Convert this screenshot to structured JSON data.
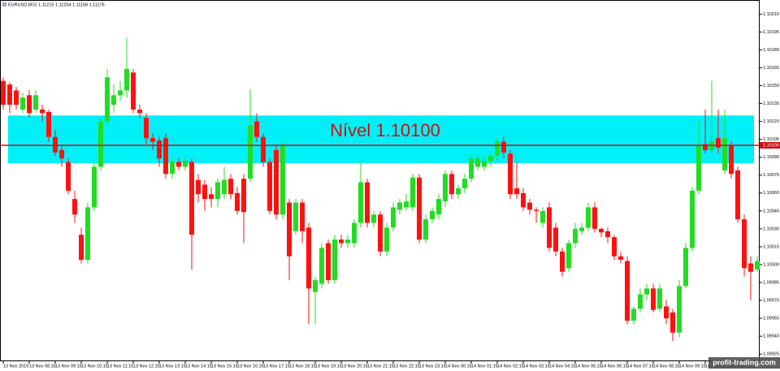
{
  "chart_data": {
    "type": "candlestick",
    "title": "EURUSD,M15  1.11215 1.11254 1.11158 1.11176",
    "watermark": "profit-trading.com",
    "categories": [
      "13 Nov 2019",
      null,
      null,
      null,
      "13 Nov 08:15",
      null,
      null,
      null,
      "13 Nov 09:15",
      null,
      null,
      null,
      "13 Nov 10:15",
      null,
      null,
      null,
      "13 Nov 11:15",
      null,
      null,
      null,
      "13 Nov 12:15",
      null,
      null,
      null,
      "13 Nov 13:15",
      null,
      null,
      null,
      "13 Nov 14:15",
      null,
      null,
      null,
      "13 Nov 15:15",
      null,
      null,
      null,
      "13 Nov 16:15",
      null,
      null,
      null,
      "13 Nov 17:15",
      null,
      null,
      null,
      "13 Nov 18:15",
      null,
      null,
      null,
      "13 Nov 19:15",
      null,
      null,
      null,
      "13 Nov 20:15",
      null,
      null,
      null,
      "13 Nov 21:15",
      null,
      null,
      null,
      "13 Nov 22:15",
      null,
      null,
      null,
      "13 Nov 23:15",
      null,
      null,
      null,
      "14 Nov 00:15",
      null,
      null,
      null,
      "14 Nov 01:15",
      null,
      null,
      null,
      "14 Nov 02:15",
      null,
      null,
      null,
      "14 Nov 03:15",
      null,
      null,
      null,
      "14 Nov 04:15",
      null,
      null,
      null,
      "14 Nov 05:15",
      null,
      null,
      null,
      "14 Nov 06:15",
      null,
      null,
      null,
      "14 Nov 07:15",
      null,
      null,
      null,
      "14 Nov 08:15",
      null,
      null,
      null,
      "14 Nov 09:15",
      null,
      null,
      null,
      "14 Nov 10:15",
      null,
      null,
      null,
      "14 Nov 11:15",
      null,
      null,
      null,
      null
    ],
    "open": [
      1.10154,
      1.10151,
      1.10146,
      1.1013,
      1.10142,
      1.1013,
      1.1013,
      1.10128,
      1.10107,
      1.10096,
      1.10086,
      1.10055,
      1.10025,
      1.10004,
      1.10048,
      1.10082,
      1.1012,
      1.10134,
      1.10142,
      1.10146,
      1.10161,
      1.1013,
      1.10123,
      1.10106,
      1.10104,
      1.10106,
      1.10076,
      1.10086,
      1.10082,
      1.10086,
      1.10071,
      1.10067,
      1.10059,
      1.10055,
      1.10059,
      1.10072,
      1.1006,
      1.10072,
      1.10072,
      1.1012,
      1.10107,
      1.10086,
      1.10096,
      1.10042,
      1.10052,
      1.10028,
      1.10052,
      1.10031,
      1.09977,
      1.09984,
      1.10018,
      1.09987,
      1.10021,
      1.10018,
      1.10018,
      1.10035,
      1.10069,
      1.10035,
      1.10042,
      1.10011,
      1.10031,
      1.10046,
      1.10048,
      1.10048,
      1.10073,
      1.10021,
      1.10038,
      1.10042,
      1.10053,
      1.10076,
      1.10059,
      1.10064,
      1.10072,
      1.10082,
      1.10082,
      1.10087,
      1.10091,
      1.10103,
      1.10093,
      1.10064,
      1.1006,
      1.10052,
      1.10046,
      1.10035,
      1.10048,
      1.10031,
      1.10011,
      1.09997,
      1.10018,
      1.10028,
      1.10031,
      1.10048,
      1.1003,
      1.10028,
      1.10023,
      1.10007,
      1.10003,
      1.09953,
      1.09963,
      1.09975,
      1.0998,
      1.09963,
      1.09965,
      1.0996,
      1.09943,
      1.09982,
      1.10014,
      1.10062,
      1.10101,
      1.10096,
      1.10106,
      1.10079,
      1.101,
      1.10079,
      1.10038,
      1.10001,
      1.09996
    ],
    "high": [
      1.10157,
      1.10153,
      1.10149,
      1.10144,
      1.10146,
      1.10146,
      1.10134,
      1.1013,
      1.10113,
      1.101,
      1.10089,
      1.10062,
      1.10031,
      1.10052,
      1.10086,
      1.10123,
      1.10164,
      1.10151,
      1.10154,
      1.1019,
      1.10164,
      1.10134,
      1.10127,
      1.1011,
      1.10107,
      1.1011,
      1.10089,
      1.10089,
      1.10091,
      1.10089,
      1.10076,
      1.10071,
      1.10065,
      1.10072,
      1.10082,
      1.10076,
      1.10065,
      1.10076,
      1.10147,
      1.10127,
      1.1011,
      1.10089,
      1.101,
      1.10103,
      1.10055,
      1.10055,
      1.10055,
      1.10035,
      1.0999,
      1.10018,
      1.10021,
      1.10025,
      1.10025,
      1.10025,
      1.10038,
      1.10086,
      1.10072,
      1.10045,
      1.10045,
      1.10035,
      1.10052,
      1.10055,
      1.10059,
      1.10076,
      1.10076,
      1.10042,
      1.10048,
      1.10059,
      1.10079,
      1.10079,
      1.10067,
      1.10076,
      1.10093,
      1.10093,
      1.10091,
      1.10094,
      1.10106,
      1.10107,
      1.10096,
      1.10086,
      1.10064,
      1.10055,
      1.10048,
      1.10048,
      1.10052,
      1.10035,
      1.10014,
      1.10021,
      1.10035,
      1.10035,
      1.10052,
      1.10052,
      1.10031,
      1.10031,
      1.10025,
      1.10011,
      1.10007,
      1.09965,
      1.0998,
      1.09984,
      1.09984,
      1.09984,
      1.0997,
      1.09963,
      1.09987,
      1.10018,
      1.10065,
      1.1012,
      1.1013,
      1.10154,
      1.1013,
      1.1013,
      1.10103,
      1.10082,
      1.10042,
      1.10007,
      1.10007
    ],
    "low": [
      1.1013,
      1.10127,
      1.1013,
      1.10127,
      1.10123,
      1.10127,
      1.1012,
      1.10103,
      1.10091,
      1.10082,
      1.10059,
      1.10035,
      1.10001,
      1.10001,
      1.10045,
      1.10079,
      1.10117,
      1.10127,
      1.10137,
      1.1014,
      1.10127,
      1.10123,
      1.101,
      1.10096,
      1.10082,
      1.10072,
      1.10072,
      1.10079,
      1.10079,
      1.09996,
      1.10052,
      1.10045,
      1.10048,
      1.10048,
      1.10055,
      1.10055,
      1.10042,
      1.10018,
      1.10069,
      1.10103,
      1.10082,
      1.10042,
      1.10038,
      1.10038,
      1.09987,
      1.10025,
      1.10018,
      1.0995,
      1.0995,
      1.0998,
      1.09984,
      1.09984,
      1.10014,
      1.10014,
      1.10014,
      1.10031,
      1.10031,
      1.10031,
      1.10007,
      1.10007,
      1.10028,
      1.10042,
      1.10045,
      1.10045,
      1.10018,
      1.10018,
      1.10035,
      1.10038,
      1.10048,
      1.10055,
      1.10055,
      1.1006,
      1.10069,
      1.10079,
      1.10079,
      1.10082,
      1.10087,
      1.10089,
      1.10055,
      1.10055,
      1.10045,
      1.10042,
      1.10035,
      1.10031,
      1.10011,
      1.10007,
      1.0999,
      1.09994,
      1.10014,
      1.10025,
      1.10028,
      1.10027,
      1.10023,
      1.10018,
      1.10004,
      1.10001,
      1.0995,
      1.0995,
      1.0996,
      1.0997,
      1.0996,
      1.0996,
      1.0995,
      1.09936,
      1.09939,
      1.0998,
      1.10011,
      1.10059,
      1.10093,
      1.10093,
      1.10093,
      1.10076,
      1.10072,
      1.10035,
      1.0999,
      1.0997,
      1.09994
    ],
    "close": [
      1.10134,
      1.10134,
      1.10134,
      1.1014,
      1.10127,
      1.10142,
      1.10127,
      1.10107,
      1.10094,
      1.10089,
      1.10062,
      1.10042,
      1.10004,
      1.10048,
      1.10082,
      1.1012,
      1.10157,
      1.10142,
      1.10146,
      1.10164,
      1.1013,
      1.10127,
      1.10106,
      1.10103,
      1.10089,
      1.10076,
      1.10086,
      1.10082,
      1.10087,
      1.10025,
      1.10059,
      1.10055,
      1.10055,
      1.10069,
      1.10071,
      1.10059,
      1.10045,
      1.10044,
      1.10117,
      1.10107,
      1.10086,
      1.10045,
      1.10042,
      1.101,
      1.10007,
      1.10052,
      1.10028,
      1.0998,
      1.09987,
      1.10014,
      1.09987,
      1.10021,
      1.10018,
      1.10021,
      1.10035,
      1.10069,
      1.10035,
      1.10042,
      1.10011,
      1.10031,
      1.10048,
      1.10052,
      1.10053,
      1.10073,
      1.10021,
      1.10038,
      1.10045,
      1.10055,
      1.10076,
      1.10059,
      1.10064,
      1.10072,
      1.10089,
      1.10089,
      1.10087,
      1.10091,
      1.10103,
      1.10094,
      1.10059,
      1.10059,
      1.10048,
      1.10046,
      1.10045,
      1.10045,
      1.10014,
      1.10011,
      1.09994,
      1.10018,
      1.1003,
      1.10031,
      1.10048,
      1.1003,
      1.10027,
      1.10023,
      1.10007,
      1.10004,
      1.09953,
      1.09963,
      1.09975,
      1.0998,
      1.09962,
      1.0998,
      1.09955,
      1.09943,
      1.09982,
      1.10014,
      1.10062,
      1.101,
      1.10096,
      1.10103,
      1.10098,
      1.10106,
      1.10076,
      1.10038,
      1.09997,
      1.09994,
      1.10003
    ],
    "up_color": "#22dd22",
    "down_color": "#ff1111",
    "ylim": [
      1.09919,
      1.10215
    ],
    "yticks": [
      {
        "value": 1.1021,
        "label": "1.10210"
      },
      {
        "value": 1.10195,
        "label": "1.10195"
      },
      {
        "value": 1.1018,
        "label": "1.10180"
      },
      {
        "value": 1.10165,
        "label": "1.10165"
      },
      {
        "value": 1.1015,
        "label": "1.10150"
      },
      {
        "value": 1.10135,
        "label": "1.10135"
      },
      {
        "value": 1.1012,
        "label": "1.10120"
      },
      {
        "value": 1.10105,
        "label": "1.10105"
      },
      {
        "value": 1.1009,
        "label": "1.10090"
      },
      {
        "value": 1.10075,
        "label": "1.10075"
      },
      {
        "value": 1.1006,
        "label": "1.10060"
      },
      {
        "value": 1.10045,
        "label": "1.10045"
      },
      {
        "value": 1.1003,
        "label": "1.10030"
      },
      {
        "value": 1.10015,
        "label": "1.10015"
      },
      {
        "value": 1.1,
        "label": "1.10000"
      },
      {
        "value": 1.09985,
        "label": "1.09985"
      },
      {
        "value": 1.0997,
        "label": "1.09970"
      },
      {
        "value": 1.09955,
        "label": "1.09955"
      },
      {
        "value": 1.0994,
        "label": "1.09940"
      },
      {
        "value": 1.09925,
        "label": "1.09925"
      }
    ],
    "level": {
      "value": 1.101,
      "label": "Nível 1.10100",
      "axis_label": "1.10100",
      "zone": [
        1.10085,
        1.10125
      ],
      "color": "#cc1111",
      "zone_color": "#00f0f8"
    }
  }
}
